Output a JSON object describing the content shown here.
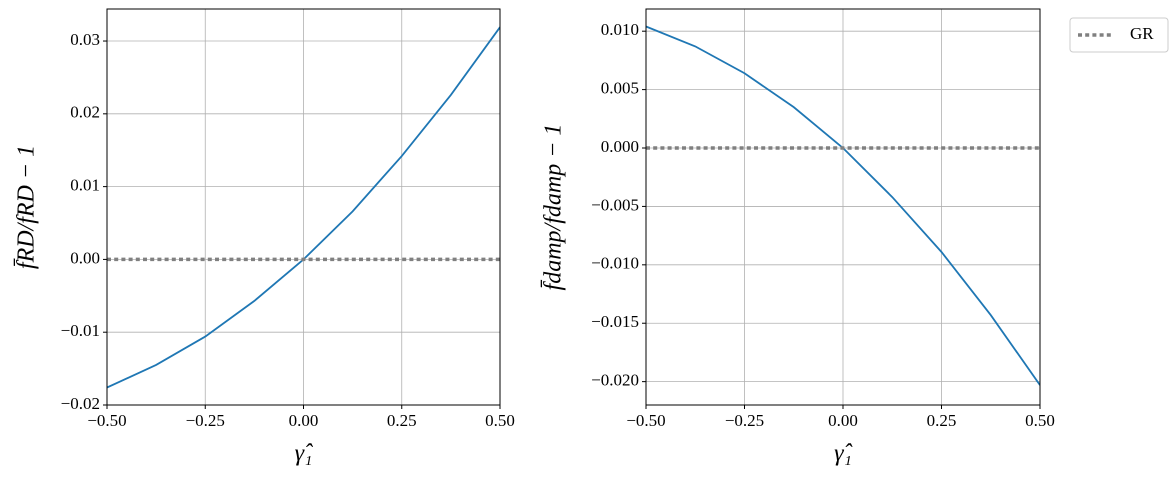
{
  "chart_data": [
    {
      "type": "line",
      "xlabel": "γ̂₁",
      "ylabel": "f̄RD/fRD − 1",
      "xlim": [
        -0.5,
        0.5
      ],
      "ylim": [
        -0.02,
        0.0344
      ],
      "grid": true,
      "xticks": [
        {
          "value": -0.5,
          "label": "−0.50"
        },
        {
          "value": -0.25,
          "label": "−0.25"
        },
        {
          "value": 0,
          "label": "0.00"
        },
        {
          "value": 0.25,
          "label": "0.25"
        },
        {
          "value": 0.5,
          "label": "0.50"
        }
      ],
      "yticks": [
        {
          "value": -0.02,
          "label": "−0.02"
        },
        {
          "value": -0.01,
          "label": "−0.01"
        },
        {
          "value": 0,
          "label": "0.00"
        },
        {
          "value": 0.01,
          "label": "0.01"
        },
        {
          "value": 0.02,
          "label": "0.02"
        },
        {
          "value": 0.03,
          "label": "0.03"
        }
      ],
      "series": [
        {
          "color": "#1f77b4",
          "style": "solid",
          "x": [
            -0.5,
            -0.375,
            -0.25,
            -0.125,
            0,
            0.125,
            0.25,
            0.375,
            0.5
          ],
          "values": [
            -0.0176,
            -0.0145,
            -0.0106,
            -0.0057,
            0,
            0.0066,
            0.0142,
            0.0226,
            0.0319
          ]
        },
        {
          "color": "#808080",
          "style": "dotted",
          "x": [
            -0.5,
            0.5
          ],
          "values": [
            0,
            0
          ]
        }
      ]
    },
    {
      "type": "line",
      "xlabel": "γ̂₁",
      "ylabel": "f̄damp/fdamp − 1",
      "xlim": [
        -0.5,
        0.5
      ],
      "ylim": [
        -0.022,
        0.0119
      ],
      "grid": true,
      "legend": "outside upper right",
      "xticks": [
        {
          "value": -0.5,
          "label": "−0.50"
        },
        {
          "value": -0.25,
          "label": "−0.25"
        },
        {
          "value": 0,
          "label": "0.00"
        },
        {
          "value": 0.25,
          "label": "0.25"
        },
        {
          "value": 0.5,
          "label": "0.50"
        }
      ],
      "yticks": [
        {
          "value": -0.02,
          "label": "−0.020"
        },
        {
          "value": -0.015,
          "label": "−0.015"
        },
        {
          "value": -0.01,
          "label": "−0.010"
        },
        {
          "value": -0.005,
          "label": "−0.005"
        },
        {
          "value": 0,
          "label": "0.000"
        },
        {
          "value": 0.005,
          "label": "0.005"
        },
        {
          "value": 0.01,
          "label": "0.010"
        }
      ],
      "series": [
        {
          "color": "#1f77b4",
          "style": "solid",
          "x": [
            -0.5,
            -0.375,
            -0.25,
            -0.125,
            0,
            0.125,
            0.25,
            0.375,
            0.5
          ],
          "values": [
            0.0104,
            0.0087,
            0.0064,
            0.0035,
            0,
            -0.0042,
            -0.0089,
            -0.0143,
            -0.0203
          ]
        },
        {
          "name": "GR",
          "color": "#808080",
          "style": "dotted",
          "x": [
            -0.5,
            0.5
          ],
          "values": [
            0,
            0
          ]
        }
      ]
    }
  ]
}
